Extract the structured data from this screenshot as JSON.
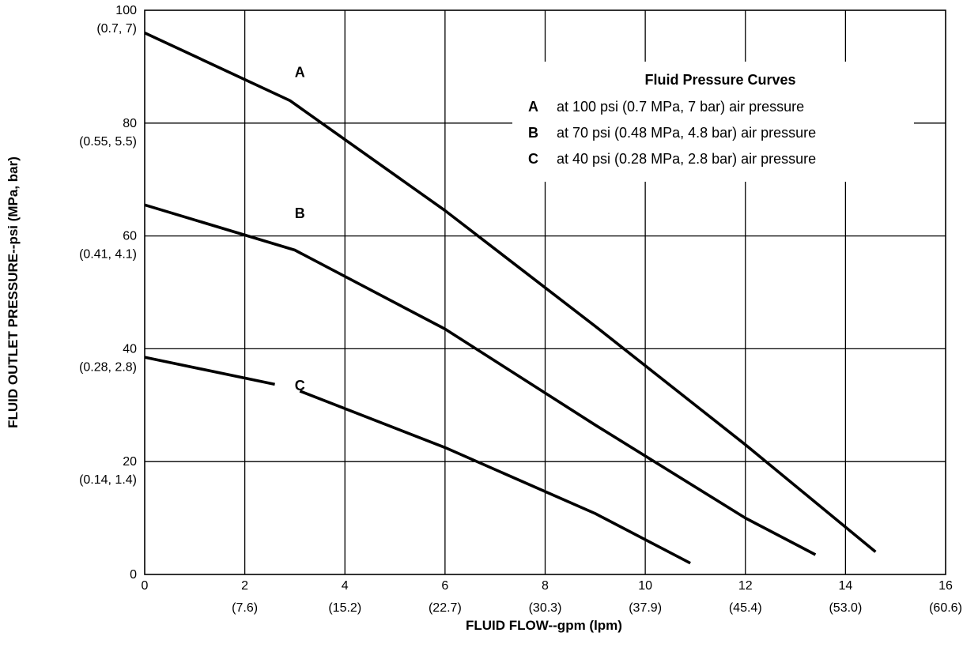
{
  "chart_data": {
    "type": "line",
    "xlabel": "FLUID FLOW--gpm (lpm)",
    "ylabel": "FLUID OUTLET PRESSURE--psi (MPa, bar)",
    "xlim": [
      0,
      16
    ],
    "ylim": [
      0,
      100
    ],
    "grid": true,
    "x_ticks": [
      {
        "value": 0,
        "label": "0",
        "sub": ""
      },
      {
        "value": 2,
        "label": "2",
        "sub": "(7.6)"
      },
      {
        "value": 4,
        "label": "4",
        "sub": "(15.2)"
      },
      {
        "value": 6,
        "label": "6",
        "sub": "(22.7)"
      },
      {
        "value": 8,
        "label": "8",
        "sub": "(30.3)"
      },
      {
        "value": 10,
        "label": "10",
        "sub": "(37.9)"
      },
      {
        "value": 12,
        "label": "12",
        "sub": "(45.4)"
      },
      {
        "value": 14,
        "label": "14",
        "sub": "(53.0)"
      },
      {
        "value": 16,
        "label": "16",
        "sub": "(60.6)"
      }
    ],
    "y_ticks": [
      {
        "value": 0,
        "label": "0",
        "sub": ""
      },
      {
        "value": 20,
        "label": "20",
        "sub": "(0.14, 1.4)"
      },
      {
        "value": 40,
        "label": "40",
        "sub": "(0.28, 2.8)"
      },
      {
        "value": 60,
        "label": "60",
        "sub": "(0.41, 4.1)"
      },
      {
        "value": 80,
        "label": "80",
        "sub": "(0.55, 5.5)"
      },
      {
        "value": 100,
        "label": "100",
        "sub": "(0.7, 7)"
      }
    ],
    "series": [
      {
        "name": "A",
        "label_at": {
          "x": 3.1,
          "y": 89
        },
        "points": [
          [
            0,
            96
          ],
          [
            2.9,
            84
          ],
          [
            6,
            64.5
          ],
          [
            9,
            44
          ],
          [
            12,
            23
          ],
          [
            14.6,
            4
          ]
        ]
      },
      {
        "name": "B",
        "label_at": {
          "x": 3.1,
          "y": 64
        },
        "points": [
          [
            0,
            65.5
          ],
          [
            3,
            57.5
          ],
          [
            6,
            43.5
          ],
          [
            9,
            26.5
          ],
          [
            12,
            10
          ],
          [
            13.4,
            3.5
          ]
        ]
      },
      {
        "name": "C",
        "label_at": {
          "x": 3.1,
          "y": 33.5
        },
        "points": [
          [
            0,
            38.5
          ],
          [
            2.6,
            33.7
          ],
          [
            3.1,
            32.5
          ],
          [
            6,
            22.5
          ],
          [
            9,
            10.8
          ],
          [
            10.9,
            2
          ]
        ],
        "gap_after_index": 1
      }
    ],
    "legend": {
      "title": "Fluid Pressure Curves",
      "placement": "top-right",
      "entries": [
        {
          "letter": "A",
          "text": "at 100 psi (0.7 MPa, 7 bar) air pressure"
        },
        {
          "letter": "B",
          "text": "at 70 psi (0.48 MPa, 4.8 bar) air pressure"
        },
        {
          "letter": "C",
          "text": "at 40 psi (0.28 MPa, 2.8 bar) air pressure"
        }
      ]
    }
  }
}
